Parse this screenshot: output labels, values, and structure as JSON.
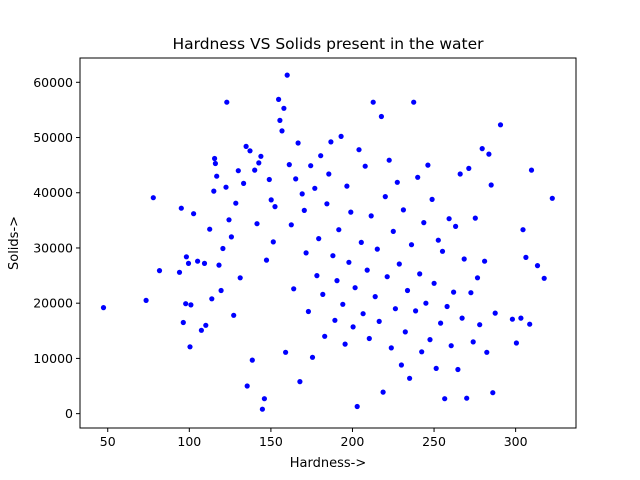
{
  "chart_data": {
    "type": "scatter",
    "title": "Hardness VS Solids present in the water",
    "xlabel": "Hardness->",
    "ylabel": "Solids->",
    "xlim": [
      33,
      337
    ],
    "ylim": [
      -2600,
      64400
    ],
    "xticks": [
      50,
      100,
      150,
      200,
      250,
      300
    ],
    "yticks": [
      0,
      10000,
      20000,
      30000,
      40000,
      50000,
      60000
    ],
    "xtick_labels": [
      "50",
      "100",
      "150",
      "200",
      "250",
      "300"
    ],
    "ytick_labels": [
      "0",
      "10000",
      "20000",
      "30000",
      "40000",
      "50000",
      "60000"
    ],
    "grid": false,
    "marker_color": "#0000ff",
    "series": [
      {
        "points": [
          [
            47.4,
            19200
          ],
          [
            73.5,
            20500
          ],
          [
            77.9,
            39100
          ],
          [
            81.7,
            25900
          ],
          [
            94.0,
            25600
          ],
          [
            95.1,
            37200
          ],
          [
            96.3,
            16500
          ],
          [
            97.8,
            19900
          ],
          [
            98.2,
            28400
          ],
          [
            99.5,
            27200
          ],
          [
            100.4,
            12100
          ],
          [
            101.0,
            19700
          ],
          [
            102.6,
            36200
          ],
          [
            105.1,
            27600
          ],
          [
            107.4,
            15100
          ],
          [
            109.3,
            27200
          ],
          [
            110.1,
            16000
          ],
          [
            112.5,
            33400
          ],
          [
            113.8,
            20800
          ],
          [
            115.0,
            40300
          ],
          [
            115.5,
            46200
          ],
          [
            116.0,
            45300
          ],
          [
            116.8,
            43000
          ],
          [
            118.2,
            26900
          ],
          [
            119.5,
            22300
          ],
          [
            120.6,
            29900
          ],
          [
            122.5,
            41000
          ],
          [
            123.0,
            56400
          ],
          [
            124.3,
            35100
          ],
          [
            125.8,
            32000
          ],
          [
            127.2,
            17800
          ],
          [
            128.5,
            38100
          ],
          [
            130.0,
            44000
          ],
          [
            131.2,
            24600
          ],
          [
            133.3,
            41700
          ],
          [
            134.8,
            48400
          ],
          [
            135.5,
            5000
          ],
          [
            137.2,
            47600
          ],
          [
            138.6,
            9700
          ],
          [
            140.1,
            44100
          ],
          [
            141.5,
            34400
          ],
          [
            142.6,
            45400
          ],
          [
            143.9,
            46600
          ],
          [
            144.8,
            800
          ],
          [
            146.0,
            2700
          ],
          [
            147.3,
            27800
          ],
          [
            149.0,
            42400
          ],
          [
            150.2,
            38700
          ],
          [
            151.5,
            31100
          ],
          [
            152.5,
            37500
          ],
          [
            154.7,
            56900
          ],
          [
            155.5,
            53100
          ],
          [
            156.8,
            51200
          ],
          [
            158.0,
            55300
          ],
          [
            159.0,
            11100
          ],
          [
            160.0,
            61300
          ],
          [
            161.3,
            45100
          ],
          [
            162.5,
            34200
          ],
          [
            164.0,
            22600
          ],
          [
            165.2,
            42500
          ],
          [
            166.7,
            49000
          ],
          [
            167.8,
            5800
          ],
          [
            169.2,
            39800
          ],
          [
            170.5,
            36800
          ],
          [
            171.6,
            29100
          ],
          [
            173.0,
            18500
          ],
          [
            174.4,
            44900
          ],
          [
            175.5,
            10200
          ],
          [
            176.9,
            40800
          ],
          [
            178.2,
            25000
          ],
          [
            179.3,
            31700
          ],
          [
            180.5,
            46700
          ],
          [
            181.8,
            21600
          ],
          [
            183.0,
            14000
          ],
          [
            184.3,
            38000
          ],
          [
            185.5,
            43400
          ],
          [
            186.8,
            49200
          ],
          [
            188.0,
            28600
          ],
          [
            189.2,
            16900
          ],
          [
            190.5,
            24100
          ],
          [
            191.6,
            33300
          ],
          [
            193.0,
            50200
          ],
          [
            194.1,
            19800
          ],
          [
            195.5,
            12600
          ],
          [
            196.6,
            41200
          ],
          [
            197.8,
            27400
          ],
          [
            199.0,
            36500
          ],
          [
            200.4,
            15700
          ],
          [
            201.6,
            22800
          ],
          [
            202.9,
            1300
          ],
          [
            204.0,
            47800
          ],
          [
            205.4,
            31000
          ],
          [
            206.5,
            18100
          ],
          [
            207.8,
            44800
          ],
          [
            209.0,
            26000
          ],
          [
            210.3,
            13600
          ],
          [
            211.5,
            35800
          ],
          [
            212.7,
            56400
          ],
          [
            213.9,
            21200
          ],
          [
            215.2,
            29800
          ],
          [
            216.4,
            16700
          ],
          [
            217.7,
            53800
          ],
          [
            218.8,
            3900
          ],
          [
            220.1,
            39300
          ],
          [
            221.3,
            24800
          ],
          [
            222.5,
            45900
          ],
          [
            223.8,
            11900
          ],
          [
            225.0,
            33000
          ],
          [
            226.3,
            19000
          ],
          [
            227.5,
            41900
          ],
          [
            228.7,
            27100
          ],
          [
            230.0,
            8800
          ],
          [
            231.2,
            36900
          ],
          [
            232.4,
            14800
          ],
          [
            233.7,
            22300
          ],
          [
            235.0,
            6400
          ],
          [
            236.2,
            30600
          ],
          [
            237.5,
            56400
          ],
          [
            238.7,
            18600
          ],
          [
            240.0,
            42800
          ],
          [
            241.2,
            25300
          ],
          [
            242.4,
            11200
          ],
          [
            243.7,
            34600
          ],
          [
            245.0,
            20000
          ],
          [
            246.2,
            45000
          ],
          [
            247.5,
            13400
          ],
          [
            248.8,
            38800
          ],
          [
            250.0,
            23600
          ],
          [
            251.3,
            8200
          ],
          [
            252.6,
            31400
          ],
          [
            254.0,
            16400
          ],
          [
            255.2,
            29400
          ],
          [
            256.5,
            2700
          ],
          [
            258.0,
            19400
          ],
          [
            259.2,
            35300
          ],
          [
            260.5,
            12300
          ],
          [
            262.0,
            22000
          ],
          [
            263.2,
            33900
          ],
          [
            264.6,
            8000
          ],
          [
            266.0,
            43400
          ],
          [
            267.2,
            17300
          ],
          [
            268.5,
            28000
          ],
          [
            270.0,
            2800
          ],
          [
            271.3,
            44400
          ],
          [
            272.6,
            21900
          ],
          [
            274.0,
            13000
          ],
          [
            275.3,
            35400
          ],
          [
            276.6,
            24600
          ],
          [
            278.0,
            16100
          ],
          [
            279.5,
            48000
          ],
          [
            281.0,
            27600
          ],
          [
            282.3,
            11100
          ],
          [
            283.6,
            47000
          ],
          [
            285.0,
            41400
          ],
          [
            286.0,
            3800
          ],
          [
            287.5,
            18200
          ],
          [
            290.7,
            52300
          ],
          [
            298.0,
            17100
          ],
          [
            300.5,
            12800
          ],
          [
            303.2,
            17300
          ],
          [
            304.5,
            33300
          ],
          [
            306.3,
            28300
          ],
          [
            308.6,
            16200
          ],
          [
            309.7,
            44100
          ],
          [
            313.4,
            26800
          ],
          [
            317.5,
            24500
          ],
          [
            322.5,
            39000
          ]
        ]
      }
    ]
  }
}
